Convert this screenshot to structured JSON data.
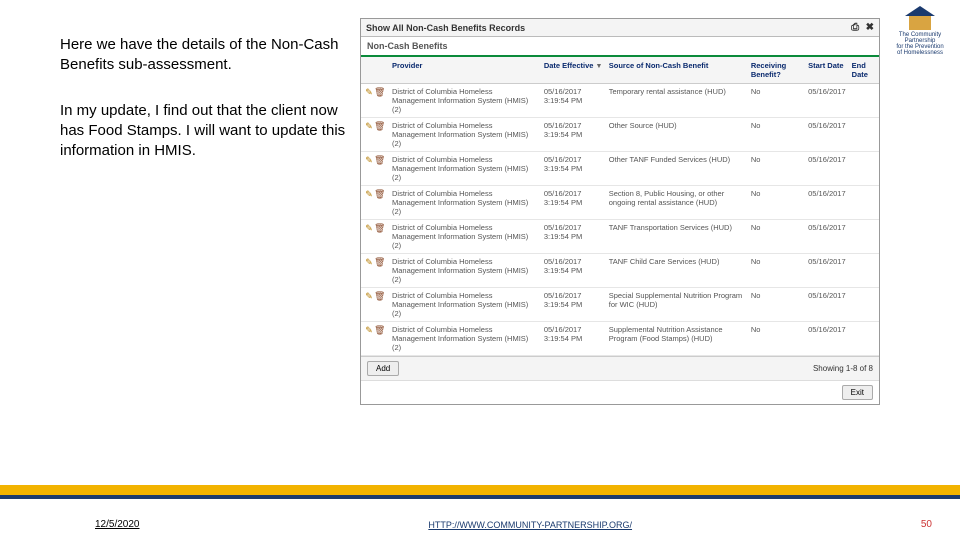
{
  "leftText": {
    "para1": "Here we have the details of the Non-Cash Benefits sub-assessment.",
    "para2": "In my update, I find out that the client now has Food Stamps. I will want to update this information in HMIS."
  },
  "logo": {
    "line1": "The Community Partnership",
    "line2": "for the Prevention",
    "line3": "of Homelessness"
  },
  "app": {
    "title": "Show All Non-Cash Benefits Records",
    "subheader": "Non-Cash Benefits",
    "columns": {
      "provider": "Provider",
      "dateEffective": "Date Effective",
      "source": "Source of Non-Cash Benefit",
      "receiving": "Receiving Benefit?",
      "startDate": "Start Date",
      "endDate": "End Date"
    },
    "providerText": "District of Columbia Homeless Management Information System (HMIS) (2)",
    "rows": [
      {
        "date": "05/16/2017 3:19:54 PM",
        "source": "Temporary rental assistance (HUD)",
        "receiving": "No",
        "start": "05/16/2017",
        "end": ""
      },
      {
        "date": "05/16/2017 3:19:54 PM",
        "source": "Other Source (HUD)",
        "receiving": "No",
        "start": "05/16/2017",
        "end": ""
      },
      {
        "date": "05/16/2017 3:19:54 PM",
        "source": "Other TANF Funded Services (HUD)",
        "receiving": "No",
        "start": "05/16/2017",
        "end": ""
      },
      {
        "date": "05/16/2017 3:19:54 PM",
        "source": "Section 8, Public Housing, or other ongoing rental assistance (HUD)",
        "receiving": "No",
        "start": "05/16/2017",
        "end": ""
      },
      {
        "date": "05/16/2017 3:19:54 PM",
        "source": "TANF Transportation Services (HUD)",
        "receiving": "No",
        "start": "05/16/2017",
        "end": ""
      },
      {
        "date": "05/16/2017 3:19:54 PM",
        "source": "TANF Child Care Services (HUD)",
        "receiving": "No",
        "start": "05/16/2017",
        "end": ""
      },
      {
        "date": "05/16/2017 3:19:54 PM",
        "source": "Special Supplemental Nutrition Program for WIC (HUD)",
        "receiving": "No",
        "start": "05/16/2017",
        "end": ""
      },
      {
        "date": "05/16/2017 3:19:54 PM",
        "source": "Supplemental Nutrition Assistance Program (Food Stamps) (HUD)",
        "receiving": "No",
        "start": "05/16/2017",
        "end": ""
      }
    ],
    "addLabel": "Add",
    "showing": "Showing 1-8 of 8",
    "exitLabel": "Exit"
  },
  "footer": {
    "date": "12/5/2020",
    "link": "HTTP://WWW.COMMUNITY-PARTNERSHIP.ORG/",
    "page": "50"
  }
}
